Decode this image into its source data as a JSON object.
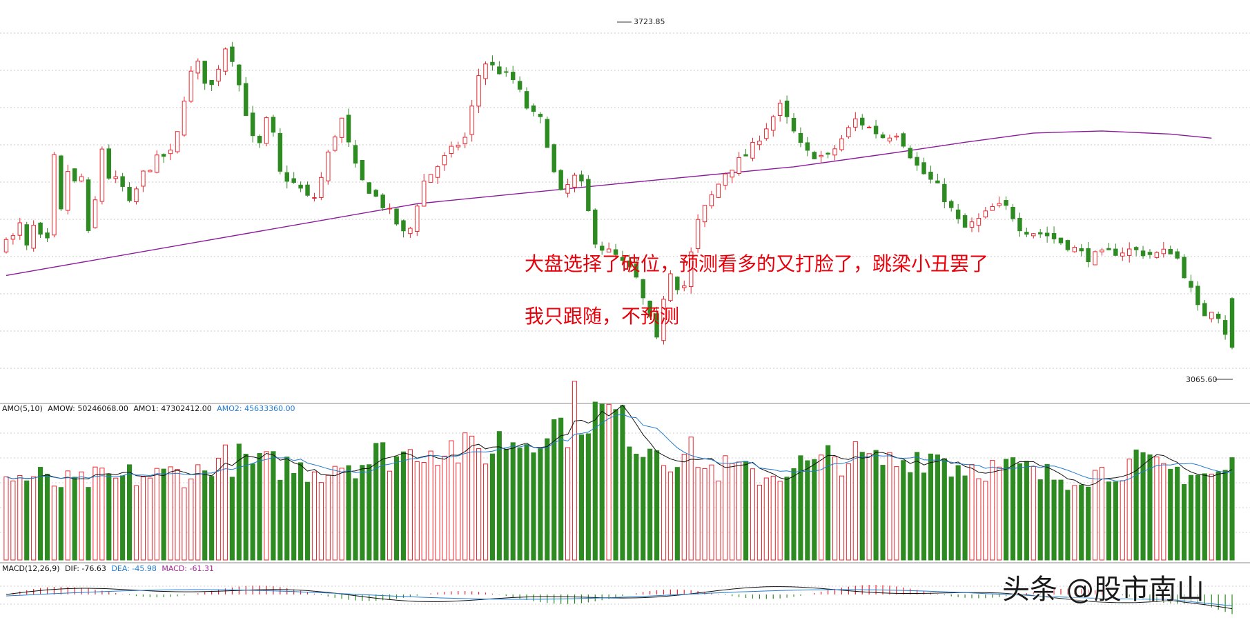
{
  "chart_data": [
    {
      "type": "candlestick",
      "panel": "price",
      "candle_count": 180,
      "high_mark": "3723.85",
      "low_mark": "3065.60",
      "series": [
        {
          "name": "MA",
          "color": "#8b1a9b",
          "x": [
            0,
            30,
            60,
            90,
            115,
            130,
            140,
            150,
            160,
            170,
            176
          ],
          "y": [
            3240,
            3310,
            3380,
            3420,
            3452,
            3480,
            3500,
            3518,
            3522,
            3516,
            3508
          ]
        }
      ],
      "annotations": [
        {
          "text": "大盘选择了破位，预测看多的又打脸了，跳梁小丑罢了"
        },
        {
          "text": "我只跟随，不预测"
        }
      ],
      "colors": {
        "up": "#e8262d",
        "down": "#2e8b22"
      }
    },
    {
      "type": "bar",
      "panel": "volume",
      "legend": {
        "name": "AMO(5,10)",
        "amow": "AMOW: 50246068.00",
        "amo1": "AMO1: 47302412.00",
        "amo2": "AMO2: 45633360.00"
      },
      "colors": {
        "amo1": "#111111",
        "amo2": "#1f7ad0"
      }
    },
    {
      "type": "bar",
      "panel": "macd",
      "legend": {
        "name": "MACD(12,26,9)",
        "dif": "DIF: -76.63",
        "dea": "DEA: -45.98",
        "macd": "MACD: -61.31"
      },
      "colors": {
        "dif": "#111111",
        "dea": "#1f7ad0",
        "macd": "#a0258f"
      }
    }
  ],
  "watermark": "头条 @股市南山"
}
